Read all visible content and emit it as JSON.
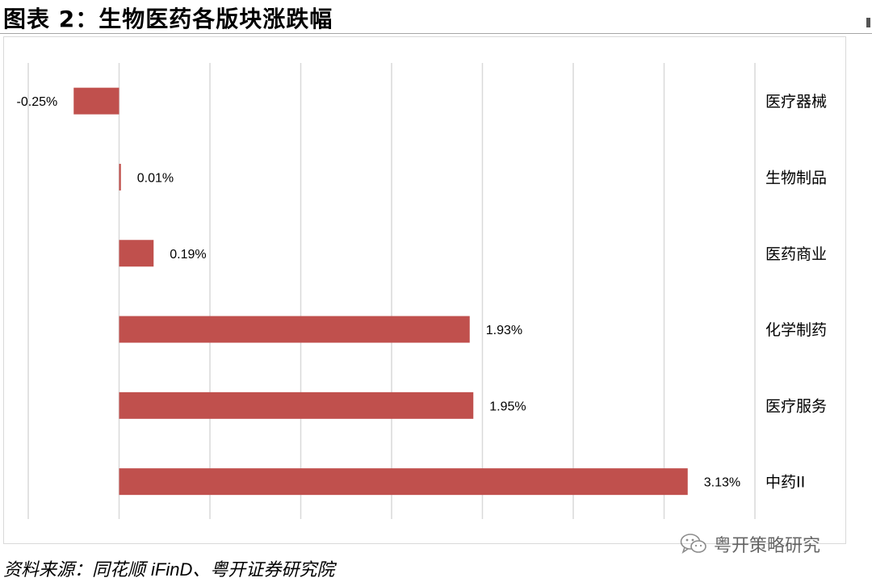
{
  "header": {
    "title": "图表 2：生物医药各版块涨跌幅"
  },
  "footer": {
    "source_prefix": "资料来源：同花顺 ",
    "source_product": "iFinD",
    "source_suffix": "、粤开证券研究院"
  },
  "watermark": {
    "text": "粤开策略研究",
    "icon": "wechat-icon"
  },
  "colors": {
    "bar": "#c0504d",
    "grid": "#d9d9d9"
  },
  "chart_data": {
    "type": "bar",
    "orientation": "horizontal",
    "categories": [
      "医疗器械",
      "生物制品",
      "医药商业",
      "化学制药",
      "医疗服务",
      "中药II"
    ],
    "values": [
      -0.25,
      0.01,
      0.19,
      1.93,
      1.95,
      3.13
    ],
    "data_labels": [
      "-0.25%",
      "0.01%",
      "0.19%",
      "1.93%",
      "1.95%",
      "3.13%"
    ],
    "unit": "%",
    "xlim": [
      -0.5,
      3.5
    ],
    "grid": true,
    "category_labels_position": "right"
  }
}
